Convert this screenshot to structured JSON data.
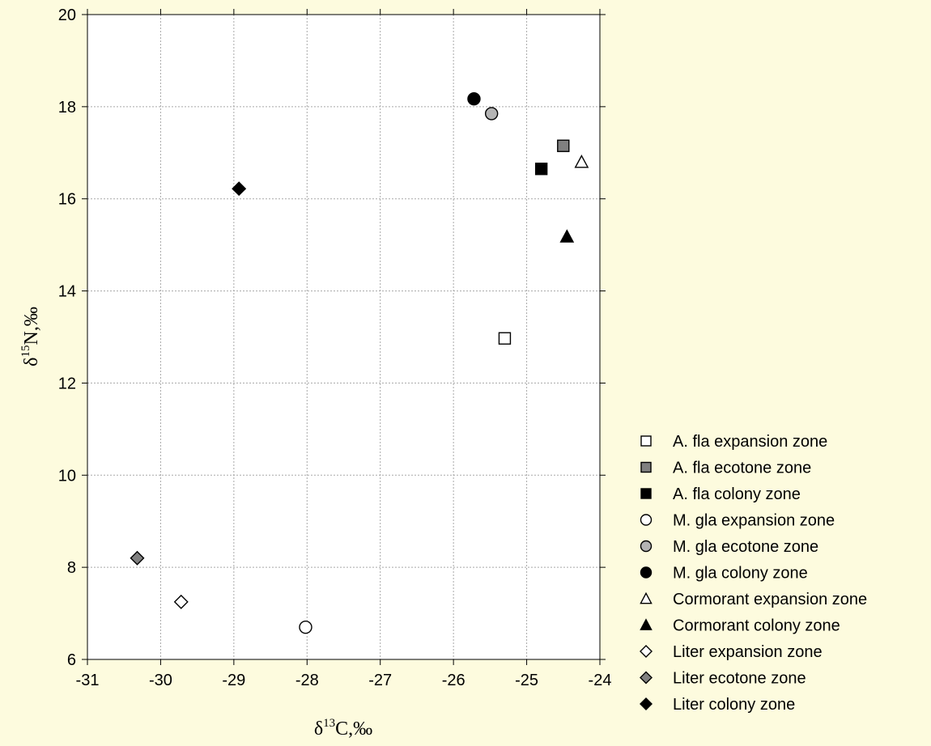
{
  "chart_data": {
    "type": "scatter",
    "title": "",
    "xlabel": {
      "prefix": "δ",
      "sup": "13",
      "suffix": "C,‰"
    },
    "ylabel": {
      "prefix": "δ",
      "sup": "15",
      "suffix": "N,‰"
    },
    "xlim": [
      -31,
      -24
    ],
    "ylim": [
      6,
      20
    ],
    "xticks": [
      -31,
      -30,
      -29,
      -28,
      -27,
      -26,
      -25,
      -24
    ],
    "yticks": [
      6,
      8,
      10,
      12,
      14,
      16,
      18,
      20
    ],
    "grid": true,
    "legend_position": "right",
    "series": [
      {
        "name": "A. fla expansion zone",
        "marker": "square",
        "fill": "#ffffff",
        "x": -25.3,
        "y": 12.97
      },
      {
        "name": "A. fla ecotone zone",
        "marker": "square",
        "fill": "#808080",
        "x": -24.5,
        "y": 17.15
      },
      {
        "name": "A. fla colony zone",
        "marker": "square",
        "fill": "#000000",
        "x": -24.8,
        "y": 16.65
      },
      {
        "name": "M. gla expansion zone",
        "marker": "circle",
        "fill": "#ffffff",
        "x": -28.02,
        "y": 6.7
      },
      {
        "name": "M. gla ecotone zone",
        "marker": "circle",
        "fill": "#b4b4b4",
        "x": -25.48,
        "y": 17.85
      },
      {
        "name": "M. gla colony zone",
        "marker": "circle",
        "fill": "#000000",
        "x": -25.72,
        "y": 18.17
      },
      {
        "name": "Cormorant expansion zone",
        "marker": "triangle",
        "fill": "#ffffff",
        "x": -24.25,
        "y": 16.8
      },
      {
        "name": "Cormorant colony zone",
        "marker": "triangle",
        "fill": "#000000",
        "x": -24.45,
        "y": 15.18
      },
      {
        "name": "Liter expansion zone",
        "marker": "diamond",
        "fill": "#ffffff",
        "x": -29.72,
        "y": 7.25
      },
      {
        "name": "Liter ecotone zone",
        "marker": "diamond",
        "fill": "#808080",
        "x": -30.32,
        "y": 8.2
      },
      {
        "name": "Liter colony zone",
        "marker": "diamond",
        "fill": "#000000",
        "x": -28.93,
        "y": 16.22
      }
    ]
  }
}
